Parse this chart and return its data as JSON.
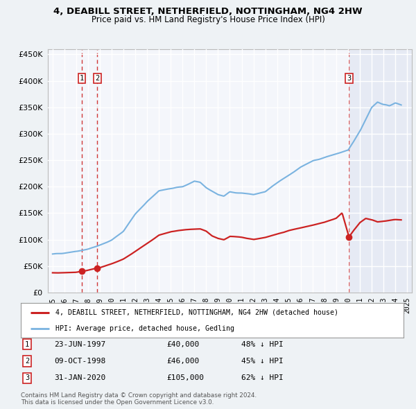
{
  "title": "4, DEABILL STREET, NETHERFIELD, NOTTINGHAM, NG4 2HW",
  "subtitle": "Price paid vs. HM Land Registry's House Price Index (HPI)",
  "sales": [
    {
      "date_yr": 1997.474,
      "price": 40000,
      "label": "1"
    },
    {
      "date_yr": 1998.772,
      "price": 46000,
      "label": "2"
    },
    {
      "date_yr": 2020.082,
      "price": 105000,
      "label": "3"
    }
  ],
  "legend_entries": [
    {
      "label": "4, DEABILL STREET, NETHERFIELD, NOTTINGHAM, NG4 2HW (detached house)",
      "color": "#cc2222",
      "lw": 1.6
    },
    {
      "label": "HPI: Average price, detached house, Gedling",
      "color": "#7ab3e0",
      "lw": 1.5
    }
  ],
  "table_rows": [
    {
      "num": "1",
      "date": "23-JUN-1997",
      "price": "£40,000",
      "hpi": "48% ↓ HPI"
    },
    {
      "num": "2",
      "date": "09-OCT-1998",
      "price": "£46,000",
      "hpi": "45% ↓ HPI"
    },
    {
      "num": "3",
      "date": "31-JAN-2020",
      "price": "£105,000",
      "hpi": "62% ↓ HPI"
    }
  ],
  "footnote": "Contains HM Land Registry data © Crown copyright and database right 2024.\nThis data is licensed under the Open Government Licence v3.0.",
  "ylim": [
    0,
    460000
  ],
  "yticks": [
    0,
    50000,
    100000,
    150000,
    200000,
    250000,
    300000,
    350000,
    400000,
    450000
  ],
  "xlim_left": 1994.6,
  "xlim_right": 2025.4,
  "bg_color": "#eef2f5",
  "plot_bg": "#f4f6fb",
  "grid_color": "#ffffff",
  "vline_color": "#cc2222",
  "shaded_right_color": "#e6eaf4",
  "hpi_anchors": [
    [
      1995.0,
      72000
    ],
    [
      1996.0,
      75000
    ],
    [
      1997.0,
      78000
    ],
    [
      1998.0,
      82000
    ],
    [
      1999.0,
      89000
    ],
    [
      2000.0,
      99000
    ],
    [
      2001.0,
      116000
    ],
    [
      2002.0,
      148000
    ],
    [
      2003.0,
      172000
    ],
    [
      2004.0,
      192000
    ],
    [
      2005.0,
      196000
    ],
    [
      2006.0,
      200000
    ],
    [
      2007.0,
      210000
    ],
    [
      2007.5,
      207000
    ],
    [
      2008.0,
      198000
    ],
    [
      2009.0,
      185000
    ],
    [
      2009.5,
      182000
    ],
    [
      2010.0,
      190000
    ],
    [
      2011.0,
      188000
    ],
    [
      2012.0,
      185000
    ],
    [
      2013.0,
      190000
    ],
    [
      2014.0,
      207000
    ],
    [
      2015.0,
      222000
    ],
    [
      2016.0,
      237000
    ],
    [
      2017.0,
      248000
    ],
    [
      2018.0,
      255000
    ],
    [
      2019.0,
      262000
    ],
    [
      2020.0,
      268000
    ],
    [
      2021.0,
      305000
    ],
    [
      2022.0,
      350000
    ],
    [
      2022.5,
      360000
    ],
    [
      2023.0,
      355000
    ],
    [
      2023.5,
      353000
    ],
    [
      2024.0,
      358000
    ],
    [
      2024.5,
      355000
    ]
  ],
  "pp_anchors": [
    [
      1995.0,
      37000
    ],
    [
      1996.0,
      37500
    ],
    [
      1997.0,
      38500
    ],
    [
      1997.474,
      40000
    ],
    [
      1997.8,
      41000
    ],
    [
      1998.0,
      42000
    ],
    [
      1998.772,
      46000
    ],
    [
      1999.0,
      47000
    ],
    [
      2000.0,
      54000
    ],
    [
      2001.0,
      63000
    ],
    [
      2002.0,
      77000
    ],
    [
      2003.0,
      93000
    ],
    [
      2004.0,
      108000
    ],
    [
      2005.0,
      115000
    ],
    [
      2006.0,
      118000
    ],
    [
      2007.0,
      120000
    ],
    [
      2007.5,
      120000
    ],
    [
      2008.0,
      116000
    ],
    [
      2008.5,
      107000
    ],
    [
      2009.0,
      102000
    ],
    [
      2009.5,
      100000
    ],
    [
      2010.0,
      106000
    ],
    [
      2011.0,
      104000
    ],
    [
      2012.0,
      100000
    ],
    [
      2013.0,
      104000
    ],
    [
      2014.0,
      110000
    ],
    [
      2015.0,
      117000
    ],
    [
      2016.0,
      122000
    ],
    [
      2017.0,
      127000
    ],
    [
      2018.0,
      132000
    ],
    [
      2019.0,
      140000
    ],
    [
      2019.5,
      150000
    ],
    [
      2020.082,
      105000
    ],
    [
      2020.5,
      118000
    ],
    [
      2021.0,
      132000
    ],
    [
      2021.5,
      140000
    ],
    [
      2022.0,
      137000
    ],
    [
      2022.5,
      133000
    ],
    [
      2023.0,
      135000
    ],
    [
      2024.0,
      138000
    ],
    [
      2024.5,
      137000
    ]
  ]
}
